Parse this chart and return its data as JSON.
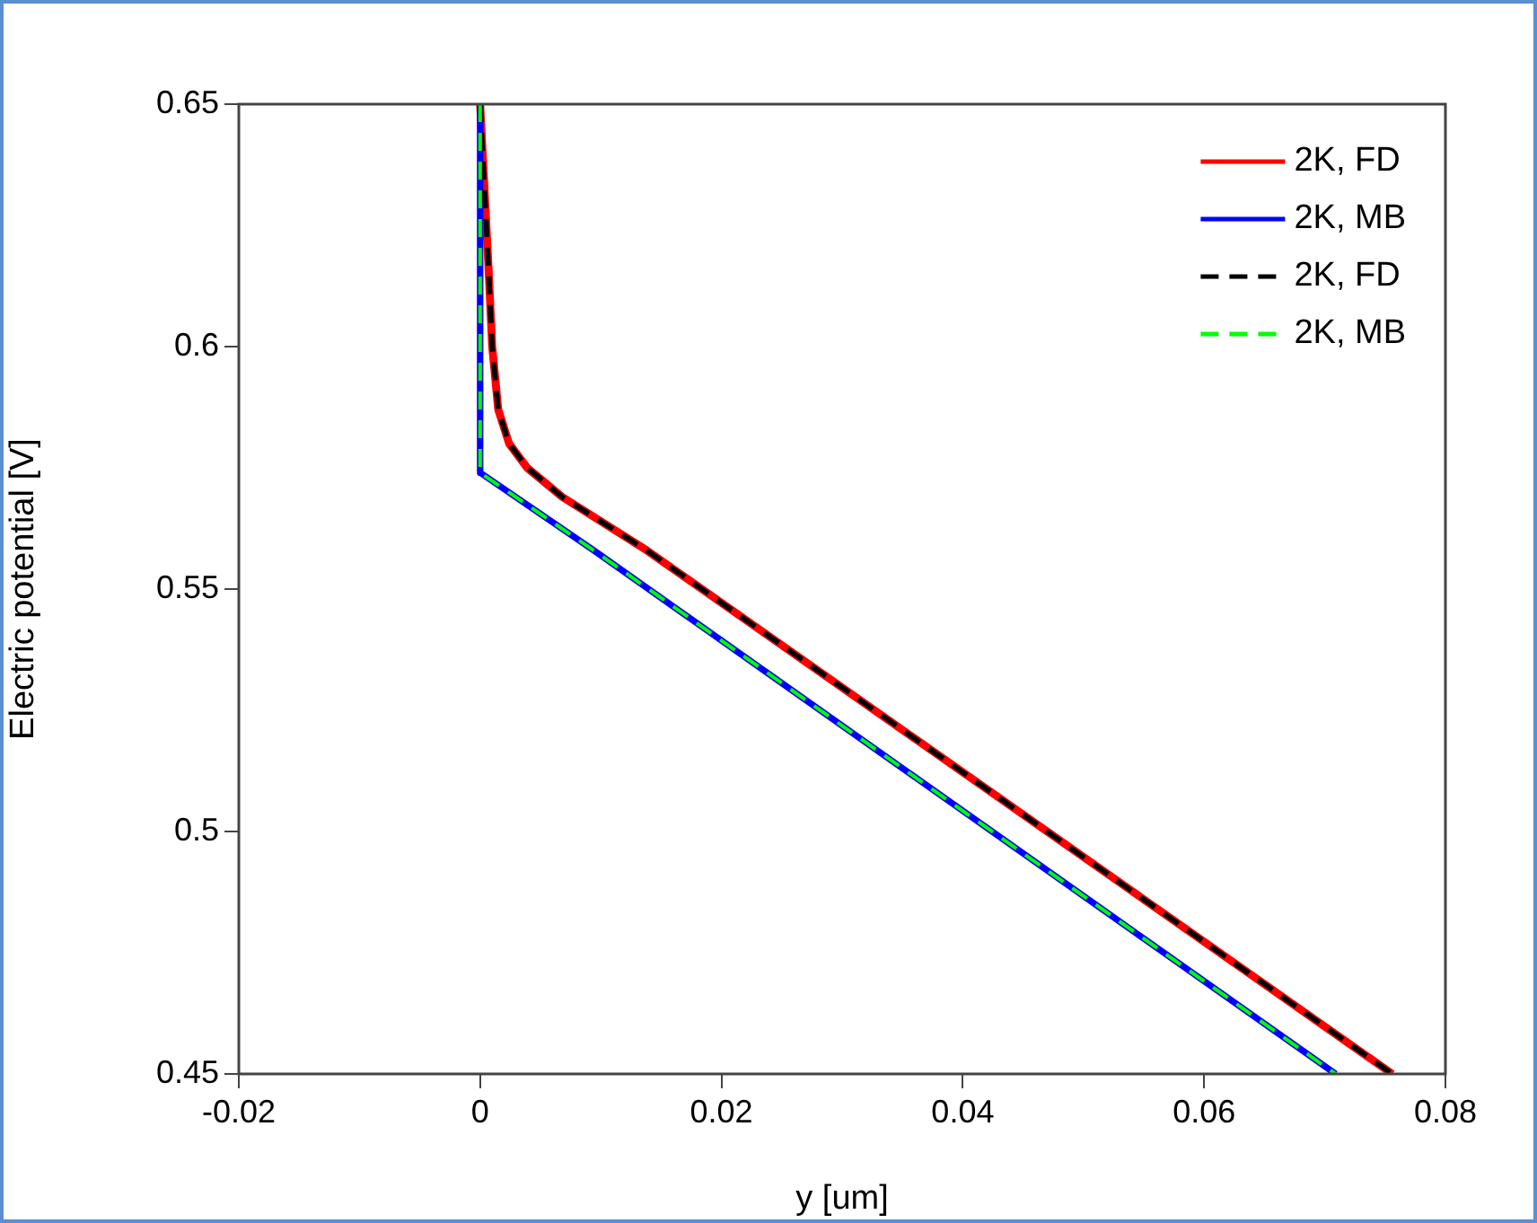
{
  "chart_data": {
    "type": "line",
    "xlabel": "y [um]",
    "ylabel": "Electric potential [V]",
    "xlim": [
      -0.02,
      0.08
    ],
    "xticks": [
      -0.02,
      0,
      0.02,
      0.04,
      0.06,
      0.08
    ],
    "ylim": [
      0.45,
      0.65
    ],
    "yticks": [
      0.45,
      0.5,
      0.55,
      0.6,
      0.65
    ],
    "grid": false,
    "legend": "top right",
    "marker": "none",
    "series": [
      {
        "name": "2K, FD",
        "color": "#ff0000",
        "line_style": "solid",
        "x": [
          0,
          0.0007,
          0.001,
          0.0015,
          0.0024,
          0.0039,
          0.0068,
          0.0138,
          0.0756
        ],
        "values": [
          0.65,
          0.616,
          0.6,
          0.587,
          0.58,
          0.575,
          0.569,
          0.558,
          0.45
        ]
      },
      {
        "name": "2K, MB",
        "color": "#0000ff",
        "line_style": "solid",
        "x": [
          0,
          0,
          0.0094,
          0.0709
        ],
        "values": [
          0.65,
          0.574,
          0.558,
          0.45
        ]
      },
      {
        "name": "2K, FD",
        "color": "#000000",
        "line_style": "dashed",
        "x": [
          0,
          0.0007,
          0.001,
          0.0015,
          0.0024,
          0.0039,
          0.0068,
          0.0138,
          0.0756
        ],
        "values": [
          0.65,
          0.616,
          0.6,
          0.587,
          0.58,
          0.575,
          0.569,
          0.558,
          0.45
        ]
      },
      {
        "name": "2K, MB",
        "color": "#00ff00",
        "line_style": "dashed",
        "x": [
          0,
          0,
          0.0094,
          0.0709
        ],
        "values": [
          0.65,
          0.574,
          0.558,
          0.45
        ]
      }
    ]
  }
}
